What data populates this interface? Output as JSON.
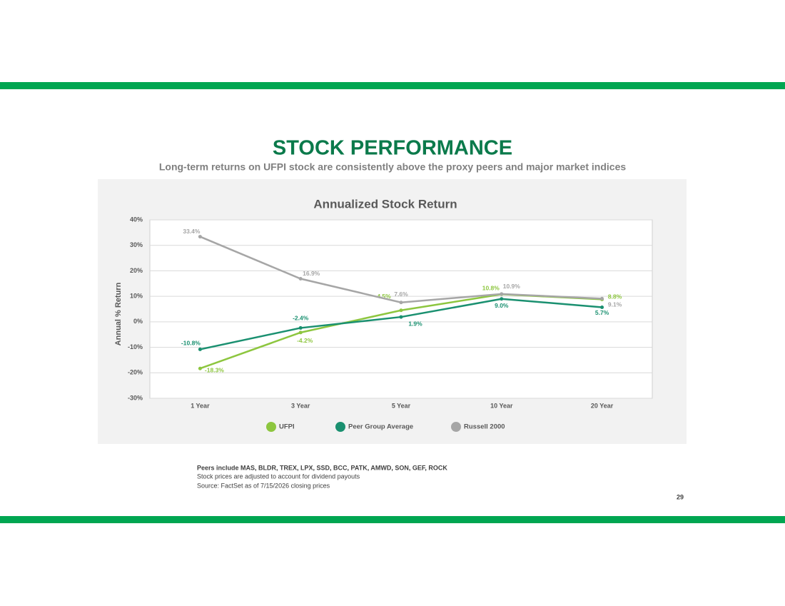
{
  "header": {
    "title": "STOCK PERFORMANCE",
    "subtitle": "Long-term returns on UFPI stock are consistently above the proxy peers and major market indices"
  },
  "chart_data": {
    "type": "line",
    "title": "Annualized Stock Return",
    "y_label": "Annual % Return",
    "categories": [
      "1 Year",
      "3 Year",
      "5 Year",
      "10 Year",
      "20 Year"
    ],
    "series": [
      {
        "name": "UFPI",
        "color": "#8dc63f",
        "values": [
          -18.3,
          -4.2,
          4.5,
          10.8,
          8.8
        ],
        "value_labels": [
          "-18.3%",
          "-4.2%",
          "4.5%",
          "10.8%",
          "8.8%"
        ]
      },
      {
        "name": "Peer Group Average",
        "color": "#1a9070",
        "values": [
          -10.8,
          -2.4,
          1.9,
          9.0,
          5.7
        ],
        "value_labels": [
          "-10.8%",
          "-2.4%",
          "1.9%",
          "9.0%",
          "5.7%"
        ]
      },
      {
        "name": "Russell 2000",
        "color": "#a6a6a6",
        "values": [
          33.4,
          16.9,
          7.6,
          10.9,
          9.1
        ],
        "value_labels": [
          "33.4%",
          "16.9%",
          "7.6%",
          "10.9%",
          "9.1%"
        ]
      }
    ],
    "ylim": [
      -30,
      40
    ],
    "yticks": [
      {
        "value": -30,
        "label": "-30%"
      },
      {
        "value": -20,
        "label": "-20%"
      },
      {
        "value": -10,
        "label": "-10%"
      },
      {
        "value": 0,
        "label": "0%"
      },
      {
        "value": 10,
        "label": "10%"
      },
      {
        "value": 20,
        "label": "20%"
      },
      {
        "value": 30,
        "label": "30%"
      },
      {
        "value": 40,
        "label": "40%"
      }
    ],
    "grid": true,
    "legend": "bottom"
  },
  "footnotes": [
    "Peers include MAS, BLDR, TREX, LPX, SSD, BCC, PATK, AMWD, SON, GEF, ROCK",
    "Stock prices are adjusted to account for dividend payouts",
    "Source: FactSet as of 7/15/2026 closing prices"
  ],
  "page_number": "29"
}
